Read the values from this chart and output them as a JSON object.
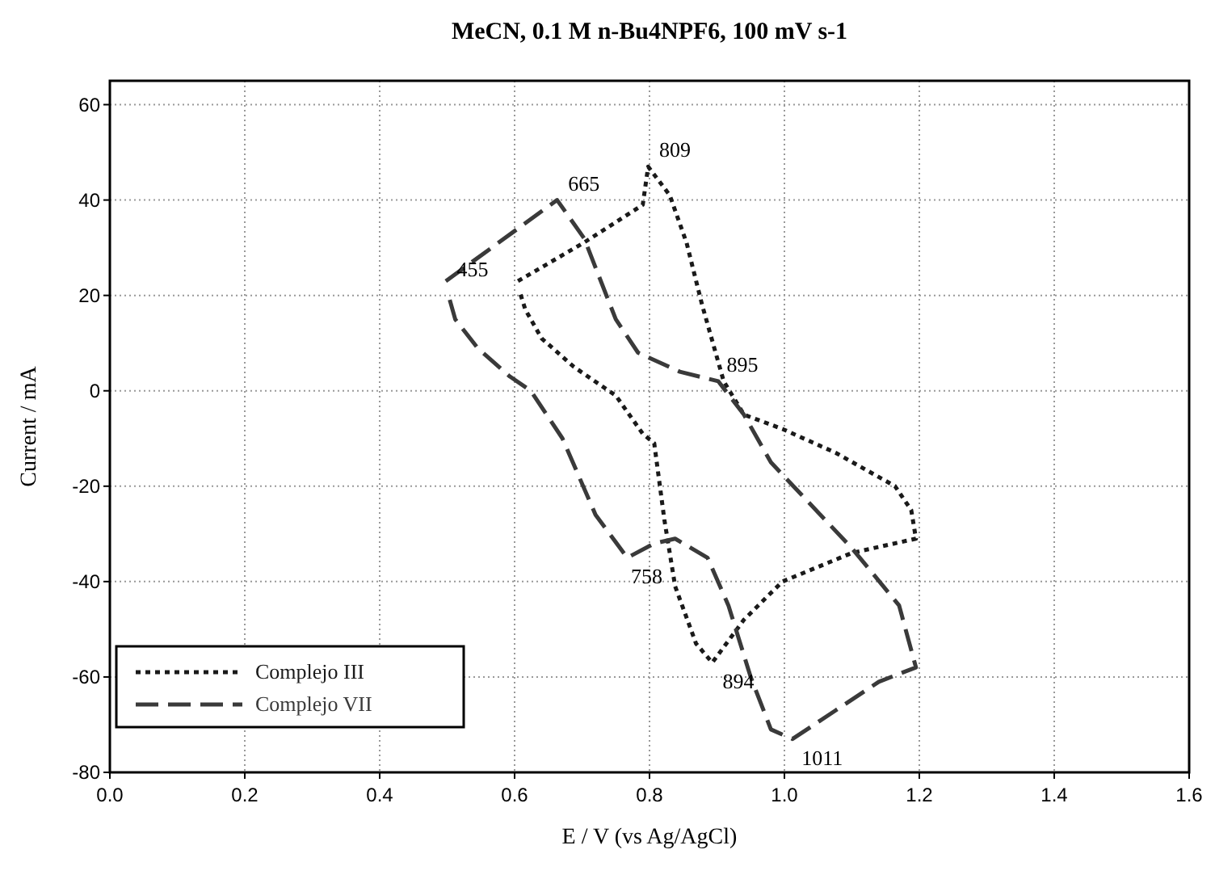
{
  "chart_data": {
    "type": "line",
    "title": "MeCN, 0.1 M n-Bu4NPF6, 100 mV s-1",
    "xlabel": "E / V (vs Ag/AgCl)",
    "ylabel": "Current / mA",
    "xlim": [
      0,
      1.6
    ],
    "xticks": [
      {
        "value": 0,
        "label": "0.0"
      },
      0.2,
      0.4,
      0.6,
      0.8,
      {
        "value": 1,
        "label": "1.0"
      },
      1.2,
      1.4,
      1.6
    ],
    "ylim": [
      -80,
      65
    ],
    "yticks": [
      -80,
      -60,
      -40,
      -20,
      0,
      20,
      40,
      60
    ],
    "grid": true,
    "legend": "bottom left",
    "marker": "none",
    "series": [
      {
        "name": "Complejo III",
        "color": "#1a1a1a",
        "line_style": "dotted",
        "x": [
          0.605,
          0.702,
          0.79,
          0.798,
          0.83,
          0.855,
          0.878,
          0.91,
          0.94,
          0.997,
          1.076,
          1.164,
          1.188,
          1.195,
          1.1,
          0.997,
          0.94,
          0.893,
          0.869,
          0.838,
          0.822,
          0.807,
          0.79,
          0.75,
          0.688,
          0.64,
          0.616,
          0.607
        ],
        "values": [
          23,
          31,
          39,
          47,
          41,
          31,
          18,
          2,
          -5,
          -8,
          -13,
          -20,
          -25,
          -31,
          -34,
          -40,
          -48,
          -57,
          -53,
          -41,
          -27,
          -11,
          -9,
          -1,
          5,
          11,
          17,
          21
        ]
      },
      {
        "name": "Complejo VII",
        "color": "#3a3a3a",
        "line_style": "dashed",
        "x": [
          0.498,
          0.663,
          0.703,
          0.75,
          0.783,
          0.845,
          0.902,
          0.94,
          0.98,
          1.1,
          1.17,
          1.195,
          1.14,
          1.076,
          1.012,
          0.98,
          0.95,
          0.917,
          0.886,
          0.838,
          0.807,
          0.767,
          0.72,
          0.671,
          0.624,
          0.593,
          0.545,
          0.512,
          0.5
        ],
        "values": [
          23,
          40,
          32,
          15,
          8,
          4,
          2,
          -5,
          -15,
          -33,
          -45,
          -58,
          -61,
          -67,
          -73,
          -71,
          -60,
          -45,
          -35,
          -31,
          -32,
          -35,
          -26,
          -10,
          0,
          3,
          9,
          15,
          21
        ]
      }
    ],
    "annotations": [
      {
        "text": "455",
        "x": 0.5,
        "y": 22
      },
      {
        "text": "665",
        "x": 0.665,
        "y": 40
      },
      {
        "text": "809",
        "x": 0.8,
        "y": 47
      },
      {
        "text": "895",
        "x": 0.9,
        "y": 2
      },
      {
        "text": "758",
        "x": 0.758,
        "y": -35
      },
      {
        "text": "894",
        "x": 0.894,
        "y": -57
      },
      {
        "text": "1011",
        "x": 1.011,
        "y": -73
      }
    ]
  }
}
